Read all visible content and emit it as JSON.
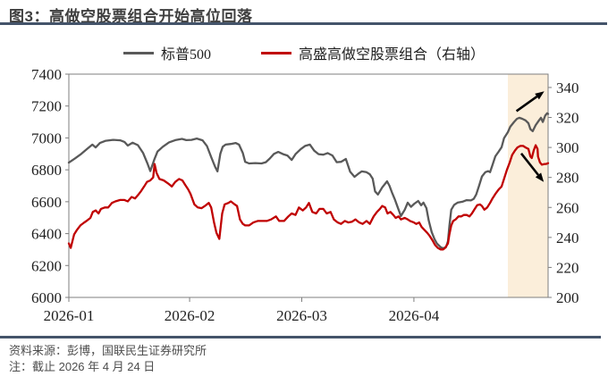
{
  "page": {
    "title": "图3：高做空股票组合开始高位回落",
    "footer_source": "资料来源：彭博，国联民生证券研究所",
    "footer_note": "注：截止 2026 年 4 月 24 日"
  },
  "colors": {
    "title_text": "#3f3f3f",
    "rule": "#44546A",
    "sp500_line": "#595959",
    "short_basket_line": "#C00000",
    "highlight_band": "#FBEEDA",
    "plot_border": "#7f7f7f",
    "arrow": "#000000"
  },
  "chart_data": {
    "type": "line",
    "title": "图3：高做空股票组合开始高位回落",
    "legend_position": "top-center",
    "grid": false,
    "legend": [
      {
        "label": "标普500",
        "color": "#595959",
        "axis": "left"
      },
      {
        "label": "高盛高做空股票组合（右轴）",
        "color": "#C00000",
        "axis": "right"
      }
    ],
    "x_axis": {
      "note": "x is percent of axis span from 2026-01-01 to 2026-04-24",
      "tick_labels": [
        "2026-01",
        "2026-02",
        "2026-03",
        "2026-04"
      ],
      "tick_pos_pct": [
        0,
        25.2,
        48.6,
        72.0
      ]
    },
    "y_axis_left": {
      "min": 6000,
      "max": 7400,
      "tick_step": 200,
      "ticks": [
        6000,
        6200,
        6400,
        6600,
        6800,
        7000,
        7200,
        7400
      ]
    },
    "y_axis_right": {
      "min": 200,
      "max": 348.9,
      "tick_step": 20,
      "ticks": [
        200,
        220,
        240,
        260,
        280,
        300,
        320,
        340
      ]
    },
    "highlight_band": {
      "from_pct": 91.6,
      "to_pct": 100,
      "color": "#FBEEDA"
    },
    "annotations": [
      {
        "type": "arrow",
        "direction": "up-right",
        "axis": "left",
        "from": [
          93.4,
          7168
        ],
        "to": [
          99.2,
          7292
        ]
      },
      {
        "type": "arrow",
        "direction": "down-right",
        "axis": "right",
        "from": [
          94.4,
          296
        ],
        "to": [
          99.1,
          277
        ]
      }
    ],
    "series": [
      {
        "name": "标普500",
        "axis": "left",
        "color": "#595959",
        "points": [
          [
            0,
            6845
          ],
          [
            1.3,
            6872
          ],
          [
            2.6,
            6900
          ],
          [
            3.7,
            6928
          ],
          [
            4.9,
            6958
          ],
          [
            5.6,
            6940
          ],
          [
            6.5,
            6968
          ],
          [
            7.7,
            6982
          ],
          [
            9.2,
            6988
          ],
          [
            10.7,
            6985
          ],
          [
            11.6,
            6975
          ],
          [
            12.3,
            6952
          ],
          [
            13.3,
            6970
          ],
          [
            14.4,
            6955
          ],
          [
            15.5,
            6905
          ],
          [
            16.4,
            6840
          ],
          [
            17,
            6792
          ],
          [
            17.8,
            6862
          ],
          [
            18.5,
            6915
          ],
          [
            19.6,
            6945
          ],
          [
            20.9,
            6972
          ],
          [
            22.2,
            6986
          ],
          [
            23.6,
            6994
          ],
          [
            24.5,
            6986
          ],
          [
            25.6,
            6988
          ],
          [
            26.7,
            6996
          ],
          [
            27.9,
            6985
          ],
          [
            28.8,
            6950
          ],
          [
            29.7,
            6880
          ],
          [
            30.5,
            6820
          ],
          [
            31,
            6790
          ],
          [
            31.6,
            6900
          ],
          [
            32.1,
            6945
          ],
          [
            32.7,
            6958
          ],
          [
            33.8,
            6962
          ],
          [
            34.8,
            6968
          ],
          [
            35.5,
            6958
          ],
          [
            36.3,
            6905
          ],
          [
            36.8,
            6850
          ],
          [
            37.6,
            6840
          ],
          [
            38.9,
            6842
          ],
          [
            40.2,
            6840
          ],
          [
            41.1,
            6848
          ],
          [
            41.9,
            6870
          ],
          [
            42.8,
            6900
          ],
          [
            43.7,
            6912
          ],
          [
            44.7,
            6898
          ],
          [
            45.6,
            6890
          ],
          [
            46.5,
            6862
          ],
          [
            47.3,
            6898
          ],
          [
            48.4,
            6930
          ],
          [
            49.3,
            6950
          ],
          [
            50.3,
            6958
          ],
          [
            51.2,
            6920
          ],
          [
            52.1,
            6898
          ],
          [
            53.1,
            6895
          ],
          [
            54,
            6905
          ],
          [
            55,
            6890
          ],
          [
            55.9,
            6848
          ],
          [
            56.8,
            6850
          ],
          [
            57.8,
            6868
          ],
          [
            58.7,
            6788
          ],
          [
            59.6,
            6756
          ],
          [
            60.4,
            6775
          ],
          [
            61.1,
            6790
          ],
          [
            62.1,
            6785
          ],
          [
            62.8,
            6772
          ],
          [
            63.4,
            6745
          ],
          [
            63.9,
            6665
          ],
          [
            64.5,
            6645
          ],
          [
            65.4,
            6690
          ],
          [
            66.4,
            6728
          ],
          [
            66.9,
            6700
          ],
          [
            67.5,
            6652
          ],
          [
            68,
            6616
          ],
          [
            68.8,
            6550
          ],
          [
            69.3,
            6510
          ],
          [
            70.1,
            6550
          ],
          [
            70.7,
            6594
          ],
          [
            71.4,
            6568
          ],
          [
            72.1,
            6588
          ],
          [
            72.9,
            6605
          ],
          [
            73.5,
            6578
          ],
          [
            74,
            6594
          ],
          [
            74.6,
            6560
          ],
          [
            75.1,
            6482
          ],
          [
            75.7,
            6410
          ],
          [
            76.3,
            6365
          ],
          [
            76.8,
            6338
          ],
          [
            77.6,
            6315
          ],
          [
            78.1,
            6308
          ],
          [
            78.7,
            6315
          ],
          [
            79.1,
            6352
          ],
          [
            79.4,
            6448
          ],
          [
            79.8,
            6550
          ],
          [
            80.4,
            6580
          ],
          [
            81.1,
            6594
          ],
          [
            82.1,
            6600
          ],
          [
            83,
            6610
          ],
          [
            83.9,
            6608
          ],
          [
            84.5,
            6618
          ],
          [
            85,
            6645
          ],
          [
            85.6,
            6700
          ],
          [
            86.2,
            6758
          ],
          [
            86.9,
            6785
          ],
          [
            87.5,
            6792
          ],
          [
            87.9,
            6785
          ],
          [
            88.4,
            6830
          ],
          [
            89,
            6885
          ],
          [
            89.7,
            6915
          ],
          [
            90.3,
            6942
          ],
          [
            90.8,
            6998
          ],
          [
            91.6,
            7036
          ],
          [
            92.1,
            7070
          ],
          [
            92.9,
            7100
          ],
          [
            93.5,
            7120
          ],
          [
            94,
            7126
          ],
          [
            94.6,
            7120
          ],
          [
            95.3,
            7110
          ],
          [
            95.9,
            7092
          ],
          [
            96.3,
            7055
          ],
          [
            96.8,
            7042
          ],
          [
            97.4,
            7080
          ],
          [
            98.1,
            7110
          ],
          [
            98.5,
            7126
          ],
          [
            98.9,
            7100
          ],
          [
            99.4,
            7140
          ],
          [
            99.8,
            7155
          ],
          [
            100,
            7150
          ]
        ]
      },
      {
        "name": "高盛高做空股票组合（右轴）",
        "axis": "right",
        "color": "#C00000",
        "points": [
          [
            0,
            236
          ],
          [
            0.4,
            233
          ],
          [
            1.1,
            242
          ],
          [
            1.7,
            245
          ],
          [
            2.4,
            248
          ],
          [
            3.2,
            250
          ],
          [
            3.7,
            251
          ],
          [
            4.5,
            253
          ],
          [
            5,
            257
          ],
          [
            5.6,
            258
          ],
          [
            6.2,
            256
          ],
          [
            6.7,
            259
          ],
          [
            7.5,
            260
          ],
          [
            8.2,
            260
          ],
          [
            9,
            263
          ],
          [
            9.7,
            264
          ],
          [
            10.7,
            265
          ],
          [
            11.6,
            265
          ],
          [
            12.3,
            264
          ],
          [
            13.1,
            267
          ],
          [
            13.8,
            266
          ],
          [
            14.6,
            269
          ],
          [
            15.1,
            271
          ],
          [
            15.7,
            274
          ],
          [
            16.3,
            277
          ],
          [
            17,
            278
          ],
          [
            17.6,
            280
          ],
          [
            17.9,
            289
          ],
          [
            18.3,
            283
          ],
          [
            18.9,
            279
          ],
          [
            19.8,
            278
          ],
          [
            20.7,
            276
          ],
          [
            21.5,
            274
          ],
          [
            22.2,
            277
          ],
          [
            23,
            279
          ],
          [
            23.7,
            278
          ],
          [
            24.3,
            275
          ],
          [
            24.9,
            272
          ],
          [
            25.4,
            269
          ],
          [
            26.2,
            262
          ],
          [
            26.9,
            260
          ],
          [
            27.7,
            259.5
          ],
          [
            28.4,
            261
          ],
          [
            29.2,
            263
          ],
          [
            29.7,
            260
          ],
          [
            30.3,
            250
          ],
          [
            30.8,
            243
          ],
          [
            31.4,
            239
          ],
          [
            32,
            256
          ],
          [
            32.5,
            262
          ],
          [
            33.3,
            263
          ],
          [
            33.8,
            264
          ],
          [
            34.6,
            262
          ],
          [
            35.1,
            261
          ],
          [
            35.7,
            252
          ],
          [
            36.3,
            249
          ],
          [
            36.8,
            248
          ],
          [
            37.6,
            248
          ],
          [
            38.5,
            250
          ],
          [
            39.4,
            251
          ],
          [
            40.4,
            251
          ],
          [
            41.3,
            251
          ],
          [
            42.2,
            252
          ],
          [
            43.2,
            254
          ],
          [
            43.9,
            251
          ],
          [
            44.9,
            251
          ],
          [
            45.8,
            254
          ],
          [
            46.5,
            256
          ],
          [
            47.3,
            255
          ],
          [
            48,
            260
          ],
          [
            48.8,
            258
          ],
          [
            49.5,
            260
          ],
          [
            50.1,
            263
          ],
          [
            50.8,
            257
          ],
          [
            51.6,
            256
          ],
          [
            52.3,
            259
          ],
          [
            53.1,
            259
          ],
          [
            53.8,
            256
          ],
          [
            54.6,
            257
          ],
          [
            55.3,
            252
          ],
          [
            56.1,
            250
          ],
          [
            56.8,
            249
          ],
          [
            57.6,
            251
          ],
          [
            58.3,
            250
          ],
          [
            59.1,
            250.5
          ],
          [
            59.8,
            252
          ],
          [
            60.6,
            250
          ],
          [
            61.3,
            249
          ],
          [
            62.1,
            251
          ],
          [
            62.8,
            249
          ],
          [
            63.6,
            254
          ],
          [
            64.3,
            257
          ],
          [
            64.9,
            259
          ],
          [
            65.4,
            261
          ],
          [
            66,
            260
          ],
          [
            66.5,
            256
          ],
          [
            67.1,
            257
          ],
          [
            67.7,
            255
          ],
          [
            68.2,
            253
          ],
          [
            68.8,
            254
          ],
          [
            69.3,
            252
          ],
          [
            70.1,
            253
          ],
          [
            70.7,
            252
          ],
          [
            71.2,
            251
          ],
          [
            72,
            250
          ],
          [
            72.5,
            249
          ],
          [
            73.1,
            250
          ],
          [
            73.6,
            247
          ],
          [
            74.2,
            245
          ],
          [
            74.8,
            243
          ],
          [
            75.3,
            241
          ],
          [
            75.9,
            238
          ],
          [
            76.4,
            235
          ],
          [
            77,
            233
          ],
          [
            77.6,
            232
          ],
          [
            78.1,
            232
          ],
          [
            78.5,
            233
          ],
          [
            79.1,
            236
          ],
          [
            79.4,
            242
          ],
          [
            79.8,
            248
          ],
          [
            80.2,
            251
          ],
          [
            80.7,
            252
          ],
          [
            81.3,
            254
          ],
          [
            81.9,
            254
          ],
          [
            82.4,
            255
          ],
          [
            83,
            255
          ],
          [
            83.6,
            254
          ],
          [
            84.1,
            256
          ],
          [
            84.7,
            259
          ],
          [
            85.2,
            261.5
          ],
          [
            85.8,
            262
          ],
          [
            86.2,
            261
          ],
          [
            86.7,
            258.5
          ],
          [
            87.3,
            260
          ],
          [
            87.9,
            263
          ],
          [
            88.4,
            266
          ],
          [
            89,
            269
          ],
          [
            89.7,
            272
          ],
          [
            90.3,
            274
          ],
          [
            90.8,
            279
          ],
          [
            91.4,
            285
          ],
          [
            92,
            290
          ],
          [
            92.5,
            295
          ],
          [
            93.1,
            298
          ],
          [
            93.6,
            300
          ],
          [
            94.2,
            301
          ],
          [
            94.8,
            301
          ],
          [
            95.3,
            300
          ],
          [
            95.9,
            299
          ],
          [
            96.3,
            294
          ],
          [
            96.6,
            293
          ],
          [
            97,
            298
          ],
          [
            97.4,
            301.5
          ],
          [
            97.8,
            299
          ],
          [
            97.9,
            294
          ],
          [
            98.3,
            290
          ],
          [
            98.7,
            288.5
          ],
          [
            99.3,
            289
          ],
          [
            99.6,
            289
          ],
          [
            100,
            289.5
          ]
        ]
      }
    ]
  }
}
